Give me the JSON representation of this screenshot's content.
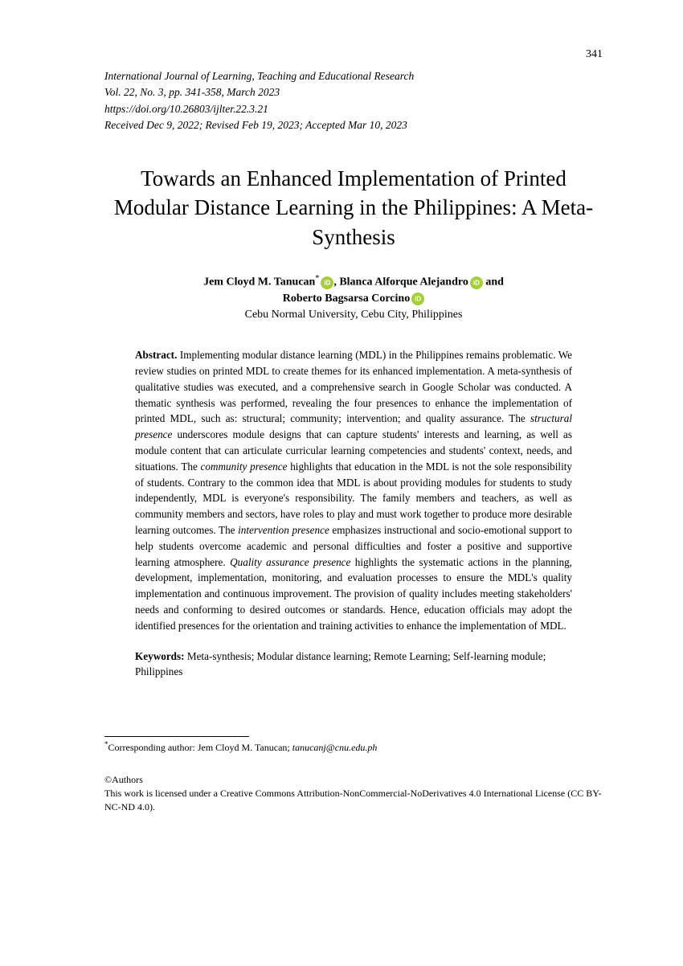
{
  "page_number": "341",
  "journal": {
    "name": "International Journal of Learning, Teaching and Educational Research",
    "volume_issue": "Vol. 22, No. 3, pp. 341-358, March 2023",
    "doi": "https://doi.org/10.26803/ijlter.22.3.21",
    "dates": "Received Dec 9, 2022; Revised Feb 19, 2023; Accepted Mar 10, 2023"
  },
  "title": "Towards an Enhanced Implementation of Printed Modular Distance Learning in the Philippines: A Meta-Synthesis",
  "authors": {
    "line1_a": "Jem Cloyd M. Tanucan",
    "line1_sup": "*",
    "line1_b": ", Blanca Alforque Alejandro",
    "line1_c": " and",
    "line2": "Roberto Bagsarsa Corcino"
  },
  "affiliation": "Cebu Normal University, Cebu City, Philippines",
  "abstract": {
    "label": "Abstract.",
    "text_1": " Implementing modular distance learning (MDL) in the Philippines remains problematic. We review studies on printed MDL to create themes for its enhanced implementation. A meta-synthesis of qualitative studies was executed, and a comprehensive search in Google Scholar was conducted. A thematic synthesis was performed, revealing the four presences to enhance the implementation of printed MDL, such as: structural; community; intervention; and quality assurance. The ",
    "em_1": "structural presence",
    "text_2": " underscores module designs that can capture students' interests and learning, as well as module content that can articulate curricular learning competencies and students' context, needs, and situations. The ",
    "em_2": "community presence",
    "text_3": " highlights that education in the MDL is not the sole responsibility of students. Contrary to the common idea that MDL is about providing modules for students to study independently, MDL is everyone's responsibility. The family members and teachers, as well as community members and sectors, have roles to play and must work together to produce more desirable learning outcomes. The ",
    "em_3": "intervention presence",
    "text_4": " emphasizes instructional and socio-emotional support to help students overcome academic and personal difficulties and foster a positive and supportive learning atmosphere. ",
    "em_4": "Quality assurance presence",
    "text_5": " highlights the systematic actions in the planning, development, implementation, monitoring, and evaluation processes to ensure the MDL's quality implementation and continuous improvement. The provision of quality includes meeting stakeholders' needs and conforming to desired outcomes or standards. Hence, education officials may adopt the identified presences for the orientation and training activities to enhance the implementation of MDL."
  },
  "keywords": {
    "label": "Keywords:",
    "text": " Meta-synthesis; Modular distance learning; Remote Learning; Self-learning module; Philippines"
  },
  "corresponding": {
    "sup": "*",
    "text": "Corresponding author: Jem Cloyd M. Tanucan; ",
    "email": "tanucanj@cnu.edu.ph"
  },
  "copyright": {
    "line1": "©Authors",
    "line2": "This work is licensed under a Creative Commons Attribution-NonCommercial-NoDerivatives 4.0 International License (CC BY-NC-ND 4.0)."
  }
}
